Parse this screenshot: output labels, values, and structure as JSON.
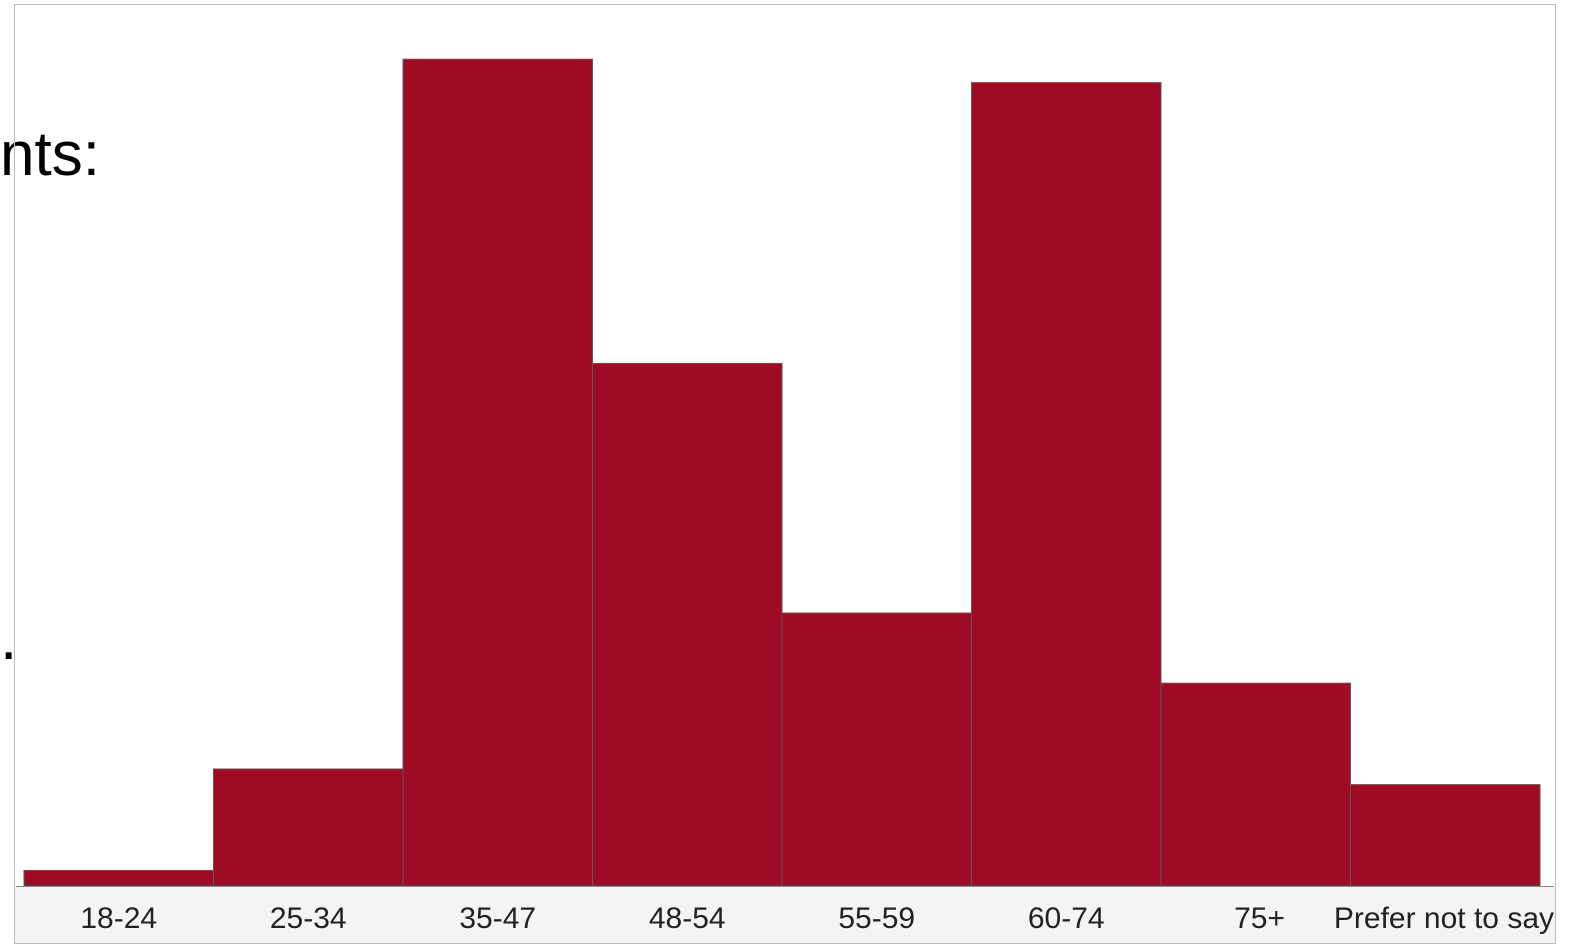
{
  "background_text": {
    "fragment_1": "nts:",
    "fragment_2": "."
  },
  "chart_data": {
    "type": "bar",
    "categories": [
      "18-24",
      "25-34",
      "35-47",
      "48-54",
      "55-59",
      "60-74",
      "75+",
      "Prefer not to say"
    ],
    "values": [
      2,
      15,
      106,
      67,
      35,
      103,
      26,
      13
    ],
    "ylim": [
      0,
      110
    ],
    "bar_color": "#9e0b22",
    "bar_edge_color": "#5a5a5a",
    "grid": false,
    "legend": "none",
    "title": "",
    "xlabel": "",
    "ylabel": ""
  }
}
